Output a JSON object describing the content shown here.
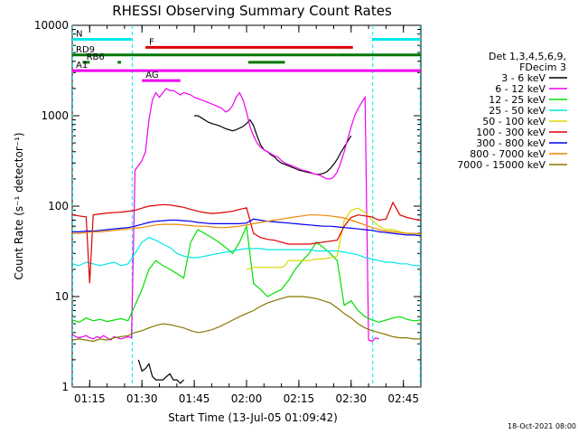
{
  "chart_data": {
    "type": "line",
    "title": "RHESSI Observing Summary Count Rates",
    "xlabel": "Start Time (13-Jul-05 01:09:42)",
    "ylabel": "Count Rate (s⁻¹ detector⁻¹)",
    "x_range_min": [
      70,
      170
    ],
    "y_range": [
      1,
      10000
    ],
    "y_scale": "log",
    "x_ticks": [
      {
        "min": 75,
        "label": "01:15"
      },
      {
        "min": 90,
        "label": "01:30"
      },
      {
        "min": 105,
        "label": "01:45"
      },
      {
        "min": 120,
        "label": "02:00"
      },
      {
        "min": 135,
        "label": "02:15"
      },
      {
        "min": 150,
        "label": "02:30"
      },
      {
        "min": 165,
        "label": "02:45"
      }
    ],
    "y_ticks": [
      {
        "value": 1,
        "label": "1"
      },
      {
        "value": 10,
        "label": "10"
      },
      {
        "value": 100,
        "label": "100"
      },
      {
        "value": 1000,
        "label": "1000"
      },
      {
        "value": 10000,
        "label": "10000"
      }
    ],
    "legend": {
      "position": "right",
      "header": [
        "Det 1,3,4,5,6,9,",
        "FDecim 3"
      ],
      "entries": [
        {
          "label": "3 - 6 keV",
          "color": "#000000"
        },
        {
          "label": "6 - 12 keV",
          "color": "#ee00ee"
        },
        {
          "label": "12 - 25 keV",
          "color": "#00e000"
        },
        {
          "label": "25 - 50 keV",
          "color": "#00e8e8"
        },
        {
          "label": "50 - 100 keV",
          "color": "#d8d800"
        },
        {
          "label": "100 - 300 keV",
          "color": "#dd0000"
        },
        {
          "label": "300 - 800 keV",
          "color": "#0000ee"
        },
        {
          "label": "800 - 7000 keV",
          "color": "#ee8800"
        },
        {
          "label": "7000 - 15000 keV",
          "color": "#887700"
        }
      ]
    },
    "flag_bars": [
      {
        "label": "N",
        "color": "#00e8e8",
        "y": 7000,
        "segments": [
          [
            70,
            87
          ],
          [
            156,
            170
          ]
        ]
      },
      {
        "label": "F",
        "color": "#dd0000",
        "y": 5700,
        "segments": [
          [
            91,
            150.5
          ]
        ]
      },
      {
        "label": "RD9",
        "color": "#007700",
        "y": 4700,
        "segments": [
          [
            70,
            120
          ],
          [
            120,
            146
          ],
          [
            146,
            170
          ]
        ]
      },
      {
        "label": "RB6",
        "color": "#007700",
        "y": 3900,
        "segments": [
          [
            73,
            75
          ],
          [
            83,
            84
          ],
          [
            120.5,
            131
          ]
        ]
      },
      {
        "label": "A1",
        "color": "#ee00ee",
        "y": 3150,
        "segments": [
          [
            70,
            170
          ]
        ]
      },
      {
        "label": "AG",
        "color": "#ee00ee",
        "y": 2450,
        "segments": [
          [
            90,
            101
          ]
        ]
      }
    ],
    "vlines_dashed": [
      {
        "min": 70.1,
        "color": "#00e8e8"
      },
      {
        "min": 87.2,
        "color": "#00e8e8"
      },
      {
        "min": 156.2,
        "color": "#00e8e8"
      },
      {
        "min": 169.8,
        "color": "#00e8e8"
      }
    ],
    "series": [
      {
        "name": "3 - 6 keV",
        "color": "#000000",
        "x": [
          89,
          90,
          91,
          92,
          93,
          94,
          95,
          96,
          97,
          98,
          99,
          100,
          101,
          102,
          103,
          104,
          105,
          106,
          107,
          108,
          109,
          110,
          111,
          112,
          113,
          114,
          115,
          116,
          117,
          118,
          119,
          120,
          121,
          122,
          123,
          124,
          125,
          126,
          127,
          128,
          129,
          130,
          131,
          132,
          133,
          134,
          135,
          136,
          137,
          138,
          139,
          140,
          141,
          142,
          143,
          144,
          145,
          146,
          147,
          148,
          149,
          150
        ],
        "y": [
          2,
          1.5,
          1.6,
          1.8,
          1.3,
          1.2,
          1.2,
          1.2,
          1.3,
          1.4,
          1.2,
          1.2,
          1.1,
          1.2,
          null,
          null,
          1000,
          1000,
          950,
          900,
          850,
          820,
          800,
          780,
          750,
          720,
          700,
          680,
          700,
          730,
          760,
          820,
          900,
          780,
          600,
          480,
          420,
          400,
          370,
          350,
          320,
          300,
          290,
          280,
          270,
          260,
          250,
          245,
          240,
          235,
          230,
          225,
          225,
          230,
          240,
          260,
          290,
          330,
          390,
          450,
          520,
          600
        ]
      },
      {
        "name": "6 - 12 keV",
        "color": "#ee00ee",
        "x": [
          70,
          71,
          72,
          73,
          74,
          75,
          76,
          77,
          78,
          79,
          80,
          81,
          82,
          83,
          84,
          85,
          86,
          87,
          88,
          89,
          90,
          91,
          92,
          93,
          94,
          95,
          96,
          97,
          98,
          99,
          100,
          101,
          102,
          103,
          104,
          105,
          106,
          107,
          108,
          109,
          110,
          111,
          112,
          113,
          114,
          115,
          116,
          117,
          118,
          119,
          120,
          121,
          122,
          123,
          124,
          125,
          126,
          127,
          128,
          129,
          130,
          131,
          132,
          133,
          134,
          135,
          136,
          137,
          138,
          139,
          140,
          141,
          142,
          143,
          144,
          145,
          146,
          147,
          148,
          149,
          150,
          151,
          152,
          153,
          154,
          155,
          156,
          157,
          158
        ],
        "y": [
          3.8,
          3.6,
          3.5,
          3.6,
          3.7,
          3.5,
          3.4,
          3.6,
          3.5,
          3.7,
          3.5,
          3.3,
          3.6,
          3.5,
          3.4,
          3.5,
          3.6,
          3.5,
          250,
          280,
          320,
          400,
          900,
          1500,
          1800,
          1600,
          1800,
          2000,
          1900,
          1900,
          1800,
          1700,
          1800,
          1750,
          1700,
          1600,
          1550,
          1500,
          1450,
          1400,
          1350,
          1300,
          1250,
          1200,
          1100,
          1150,
          1300,
          1600,
          1800,
          1500,
          1100,
          750,
          600,
          500,
          450,
          420,
          400,
          380,
          360,
          350,
          320,
          300,
          290,
          280,
          270,
          260,
          250,
          245,
          240,
          230,
          225,
          220,
          210,
          200,
          200,
          210,
          240,
          300,
          400,
          550,
          750,
          1000,
          1200,
          1400,
          1600,
          3.3,
          3.2,
          3.5,
          3.4
        ]
      },
      {
        "name": "12 - 25 keV",
        "color": "#00e000",
        "x": [
          70,
          72,
          74,
          76,
          78,
          80,
          82,
          84,
          86,
          88,
          90,
          92,
          94,
          96,
          98,
          100,
          102,
          104,
          106,
          108,
          110,
          112,
          114,
          116,
          118,
          120,
          122,
          124,
          126,
          128,
          130,
          132,
          134,
          136,
          138,
          140,
          142,
          144,
          146,
          148,
          150,
          152,
          154,
          156,
          158,
          160,
          162,
          164,
          166,
          168,
          170
        ],
        "y": [
          5.5,
          5.2,
          5.8,
          5.4,
          5.6,
          5.3,
          5.5,
          5.7,
          5.4,
          8,
          12,
          20,
          25,
          22,
          20,
          18,
          16,
          40,
          55,
          50,
          45,
          40,
          35,
          30,
          40,
          60,
          14,
          12,
          10,
          11,
          12,
          15,
          20,
          25,
          30,
          40,
          35,
          30,
          25,
          8,
          9,
          7,
          6,
          5.5,
          5.2,
          5.5,
          5.8,
          6,
          5.6,
          5.4,
          5.5
        ]
      },
      {
        "name": "25 - 50 keV",
        "color": "#00e8e8",
        "x": [
          70,
          72,
          74,
          76,
          78,
          80,
          82,
          84,
          86,
          88,
          90,
          92,
          94,
          96,
          98,
          100,
          102,
          104,
          106,
          108,
          110,
          112,
          114,
          116,
          118,
          120,
          122,
          124,
          126,
          128,
          130,
          132,
          134,
          136,
          138,
          140,
          142,
          144,
          146,
          148,
          150,
          152,
          154,
          156,
          158,
          160,
          162,
          164,
          166,
          168,
          170
        ],
        "y": [
          23,
          22,
          24,
          23,
          22,
          23,
          24,
          22,
          23,
          30,
          40,
          45,
          42,
          38,
          35,
          30,
          28,
          27,
          27,
          28,
          29,
          30,
          31,
          32,
          33,
          34,
          34,
          34,
          33,
          33,
          33,
          33,
          33,
          33,
          33,
          32,
          32,
          32,
          32,
          31,
          30,
          29,
          27,
          26,
          25,
          24,
          24,
          23,
          23,
          22,
          22
        ]
      },
      {
        "name": "50 - 100 keV",
        "color": "#d8d800",
        "x": [
          120,
          122,
          124,
          126,
          128,
          130,
          131,
          132,
          134,
          136,
          138,
          140,
          142,
          144,
          146,
          148,
          150,
          152,
          154,
          156,
          158,
          160,
          162,
          164,
          166,
          168,
          170
        ],
        "y": [
          20,
          21,
          21,
          21,
          21,
          21,
          22,
          25,
          25,
          25,
          25,
          26,
          26,
          27,
          28,
          70,
          90,
          95,
          85,
          70,
          60,
          55,
          55,
          52,
          50,
          48,
          47
        ]
      },
      {
        "name": "100 - 300 keV",
        "color": "#dd0000",
        "x": [
          70,
          72,
          74,
          75,
          76,
          78,
          80,
          82,
          84,
          86,
          88,
          90,
          92,
          94,
          96,
          98,
          100,
          102,
          104,
          106,
          108,
          110,
          112,
          114,
          116,
          118,
          120,
          122,
          124,
          126,
          128,
          130,
          132,
          134,
          136,
          138,
          140,
          142,
          144,
          146,
          148,
          150,
          152,
          154,
          156,
          158,
          160,
          162,
          164,
          166,
          168,
          170
        ],
        "y": [
          80,
          78,
          76,
          14,
          80,
          82,
          84,
          85,
          86,
          88,
          90,
          95,
          100,
          102,
          104,
          103,
          100,
          97,
          92,
          88,
          85,
          83,
          84,
          86,
          88,
          92,
          96,
          50,
          45,
          43,
          42,
          40,
          38,
          38,
          38,
          38,
          39,
          40,
          41,
          42,
          60,
          75,
          80,
          78,
          76,
          70,
          72,
          110,
          80,
          75,
          72,
          70
        ]
      },
      {
        "name": "300 - 800 keV",
        "color": "#0000ee",
        "x": [
          70,
          72,
          74,
          76,
          78,
          80,
          82,
          84,
          86,
          88,
          90,
          92,
          94,
          96,
          98,
          100,
          102,
          104,
          106,
          108,
          110,
          112,
          114,
          116,
          118,
          120,
          122,
          124,
          126,
          128,
          130,
          132,
          134,
          136,
          138,
          140,
          142,
          144,
          146,
          148,
          150,
          152,
          154,
          156,
          158,
          160,
          162,
          164,
          166,
          168,
          170
        ],
        "y": [
          52,
          52,
          53,
          53,
          54,
          55,
          56,
          57,
          58,
          60,
          63,
          66,
          68,
          69,
          70,
          70,
          69,
          68,
          66,
          65,
          64,
          64,
          64,
          64,
          64,
          65,
          72,
          70,
          68,
          67,
          66,
          65,
          64,
          63,
          62,
          61,
          60,
          60,
          59,
          58,
          57,
          56,
          55,
          54,
          52,
          51,
          50,
          49,
          48,
          48,
          47
        ]
      },
      {
        "name": "800 - 7000 keV",
        "color": "#ee8800",
        "x": [
          70,
          72,
          74,
          76,
          78,
          80,
          82,
          84,
          86,
          88,
          90,
          92,
          94,
          96,
          98,
          100,
          102,
          104,
          106,
          108,
          110,
          112,
          114,
          116,
          118,
          120,
          122,
          124,
          126,
          128,
          130,
          132,
          134,
          136,
          138,
          140,
          142,
          144,
          146,
          148,
          150,
          152,
          154,
          156,
          158,
          160,
          162,
          164,
          166,
          168,
          170
        ],
        "y": [
          50,
          50,
          51,
          52,
          52,
          53,
          54,
          55,
          56,
          57,
          58,
          60,
          62,
          63,
          63,
          63,
          62,
          61,
          60,
          60,
          59,
          58,
          58,
          59,
          60,
          62,
          64,
          66,
          68,
          70,
          72,
          74,
          76,
          78,
          80,
          80,
          79,
          78,
          76,
          74,
          70,
          66,
          62,
          58,
          55,
          53,
          52,
          51,
          50,
          50,
          49
        ]
      },
      {
        "name": "7000 - 15000 keV",
        "color": "#887700",
        "x": [
          70,
          72,
          74,
          76,
          78,
          80,
          82,
          84,
          86,
          88,
          90,
          92,
          94,
          96,
          98,
          100,
          102,
          104,
          106,
          108,
          110,
          112,
          114,
          116,
          118,
          120,
          122,
          124,
          126,
          128,
          130,
          132,
          134,
          136,
          138,
          140,
          142,
          144,
          146,
          148,
          150,
          152,
          154,
          156,
          158,
          160,
          162,
          164,
          166,
          168,
          170
        ],
        "y": [
          3.3,
          3.4,
          3.3,
          3.2,
          3.4,
          3.3,
          3.5,
          3.6,
          3.7,
          4.0,
          4.2,
          4.5,
          4.8,
          5.0,
          4.9,
          4.7,
          4.5,
          4.2,
          4.0,
          4.1,
          4.3,
          4.6,
          5.0,
          5.5,
          6.0,
          6.5,
          7.0,
          7.8,
          8.5,
          9.0,
          9.5,
          10,
          10,
          10,
          9.8,
          9.5,
          9.0,
          8.5,
          7.5,
          6.5,
          5.8,
          5.0,
          4.5,
          4.2,
          4.0,
          3.8,
          3.6,
          3.5,
          3.5,
          3.4,
          3.4
        ]
      }
    ]
  },
  "footer": {
    "timestamp": "18-Oct-2021 08:00"
  }
}
